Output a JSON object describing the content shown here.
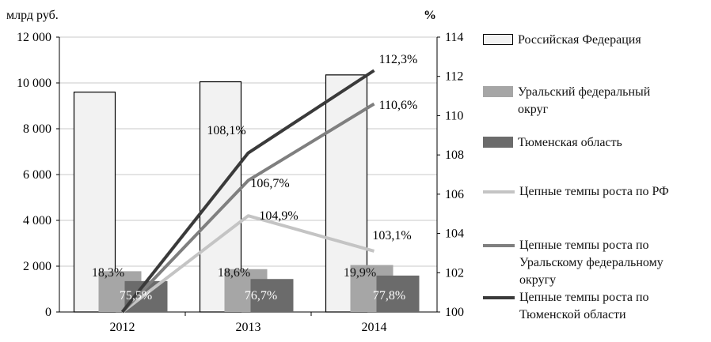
{
  "chart_data": {
    "type": "bar",
    "categories": [
      "2012",
      "2013",
      "2014"
    ],
    "y_left_label": "млрд руб.",
    "y_right_label": "%",
    "y_left_ticks": [
      "0",
      "2 000",
      "4 000",
      "6 000",
      "8 000",
      "10 000",
      "12 000"
    ],
    "y_right_ticks": [
      "100",
      "102",
      "104",
      "106",
      "108",
      "110",
      "112",
      "114"
    ],
    "y_left_lim": [
      0,
      12000
    ],
    "y_right_lim": [
      100,
      114
    ],
    "grid": "horizontal",
    "legend_position": "right",
    "bar_series": [
      {
        "name": "Российская Федерация",
        "color": "#f2f2f2",
        "values": [
          9600,
          10050,
          10350
        ],
        "labels": [
          "",
          "",
          ""
        ]
      },
      {
        "name": "Уральский федеральный\nокруг",
        "color": "#a6a6a6",
        "values": [
          1780,
          1870,
          2050
        ],
        "labels": [
          "18,3%",
          "18,6%",
          "19,9%"
        ]
      },
      {
        "name": "Тюменская область",
        "color": "#6b6b6b",
        "values": [
          1350,
          1440,
          1590
        ],
        "labels": [
          "75,5%",
          "76,7%",
          "77,8%"
        ]
      }
    ],
    "line_series": [
      {
        "name": "Цепные темпы роста по РФ",
        "color": "#c4c4c4",
        "values": [
          100,
          104.9,
          103.1
        ],
        "labels": [
          "",
          "104,9%",
          "103,1%"
        ]
      },
      {
        "name": "Цепные темпы роста по\nУральскому федеральному\nокругу",
        "color": "#7f7f7f",
        "values": [
          100,
          106.7,
          110.6
        ],
        "labels": [
          "",
          "106,7%",
          "110,6%"
        ]
      },
      {
        "name": "Цепные темпы роста по\nТюменской области",
        "color": "#3a3a3a",
        "values": [
          100,
          108.1,
          112.3
        ],
        "labels": [
          "",
          "108,1%",
          "112,3%"
        ]
      }
    ]
  }
}
